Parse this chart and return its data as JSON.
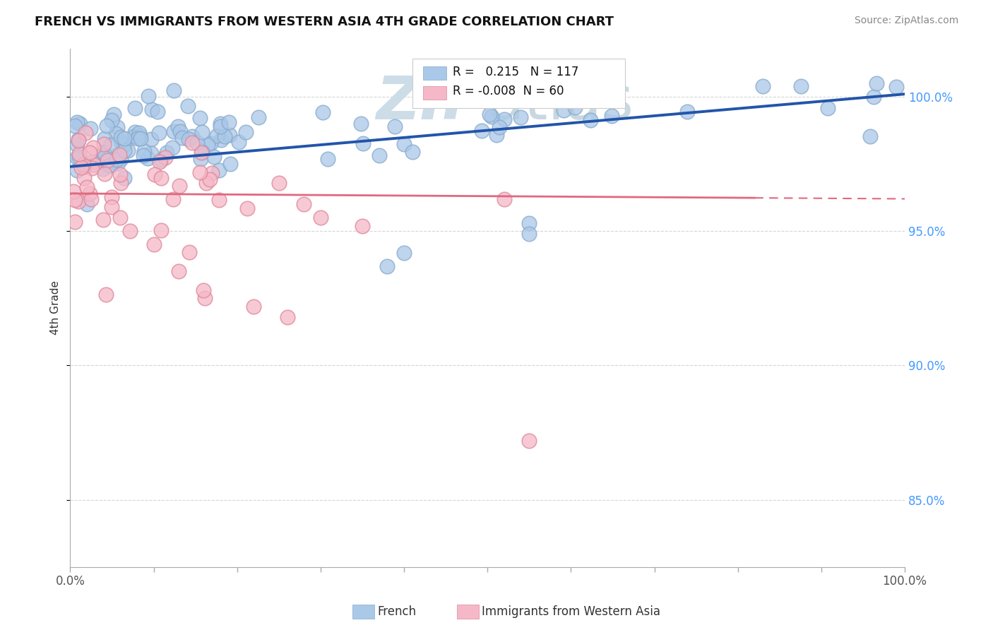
{
  "title": "FRENCH VS IMMIGRANTS FROM WESTERN ASIA 4TH GRADE CORRELATION CHART",
  "source": "Source: ZipAtlas.com",
  "ylabel": "4th Grade",
  "yticks": [
    "85.0%",
    "90.0%",
    "95.0%",
    "100.0%"
  ],
  "ytick_values": [
    0.85,
    0.9,
    0.95,
    1.0
  ],
  "xlim": [
    0.0,
    1.0
  ],
  "ylim": [
    0.825,
    1.018
  ],
  "blue_R": 0.215,
  "blue_N": 117,
  "pink_R": -0.008,
  "pink_N": 60,
  "blue_color": "#aac8e8",
  "blue_edge_color": "#88aacc",
  "blue_line_color": "#2255aa",
  "pink_color": "#f5b8c8",
  "pink_edge_color": "#dd8899",
  "pink_line_color": "#e06880",
  "watermark_color": "#ccdde8",
  "background_color": "#ffffff",
  "grid_color": "#bbbbbb",
  "legend_border_color": "#cccccc",
  "right_axis_color": "#4499ff",
  "title_color": "#111111",
  "source_color": "#888888",
  "ylabel_color": "#333333"
}
